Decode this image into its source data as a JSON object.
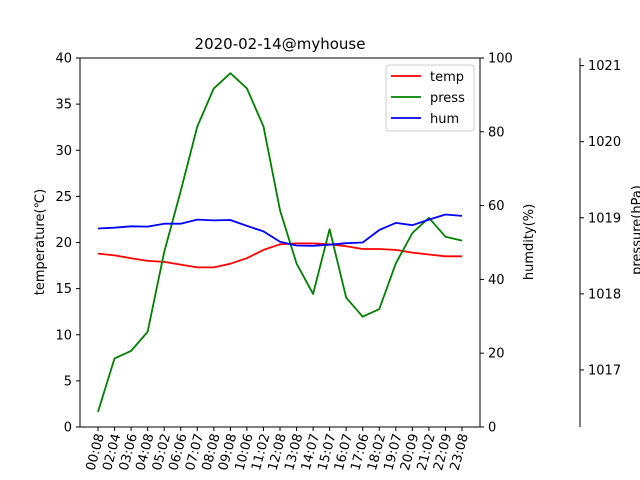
{
  "chart_data": {
    "type": "line",
    "title": "2020-02-14@myhouse",
    "x": [
      "00:08",
      "02:04",
      "03:06",
      "04:08",
      "05:02",
      "06:06",
      "07:07",
      "08:08",
      "09:08",
      "10:06",
      "11:02",
      "12:08",
      "13:08",
      "14:07",
      "15:07",
      "16:07",
      "17:06",
      "18:02",
      "19:07",
      "20:09",
      "21:02",
      "22:09",
      "23:08"
    ],
    "axes": {
      "left": {
        "label": "temperature(℃)",
        "ylim": [
          0,
          40
        ],
        "ticks": [
          0,
          5,
          10,
          15,
          20,
          25,
          30,
          35,
          40
        ]
      },
      "right": {
        "label": "humdity(%)",
        "ylim": [
          0,
          100
        ],
        "ticks": [
          0,
          20,
          40,
          60,
          80,
          100
        ]
      },
      "right2": {
        "label": "pressure(hPa)",
        "ylim": [
          1016.25,
          1021.1
        ],
        "ticks": [
          1017,
          1018,
          1019,
          1020,
          1021
        ]
      }
    },
    "series": [
      {
        "name": "temp",
        "axis": "left",
        "color": "#ff0000",
        "values": [
          18.8,
          18.6,
          18.3,
          18.0,
          17.9,
          17.6,
          17.3,
          17.3,
          17.7,
          18.3,
          19.2,
          19.8,
          19.9,
          19.9,
          19.8,
          19.6,
          19.3,
          19.3,
          19.2,
          18.9,
          18.7,
          18.5,
          18.5
        ]
      },
      {
        "name": "press",
        "axis": "right2",
        "color": "#008000",
        "values": [
          1016.45,
          1017.15,
          1017.25,
          1017.5,
          1018.55,
          1019.35,
          1020.2,
          1020.7,
          1020.9,
          1020.7,
          1020.2,
          1019.1,
          1018.4,
          1018.0,
          1018.85,
          1017.95,
          1017.7,
          1017.8,
          1018.4,
          1018.8,
          1019.0,
          1018.75,
          1018.7
        ]
      },
      {
        "name": "hum",
        "axis": "right",
        "color": "#0000ff",
        "values": [
          53.8,
          54.0,
          54.4,
          54.3,
          55.1,
          55.1,
          56.2,
          56.0,
          56.1,
          54.5,
          53.0,
          50.2,
          49.2,
          49.1,
          49.4,
          49.8,
          50.0,
          53.4,
          55.3,
          54.7,
          56.2,
          57.6,
          57.2
        ]
      }
    ],
    "legend": {
      "placement": "top-right",
      "entries": [
        "temp",
        "press",
        "hum"
      ]
    },
    "grid": false
  }
}
